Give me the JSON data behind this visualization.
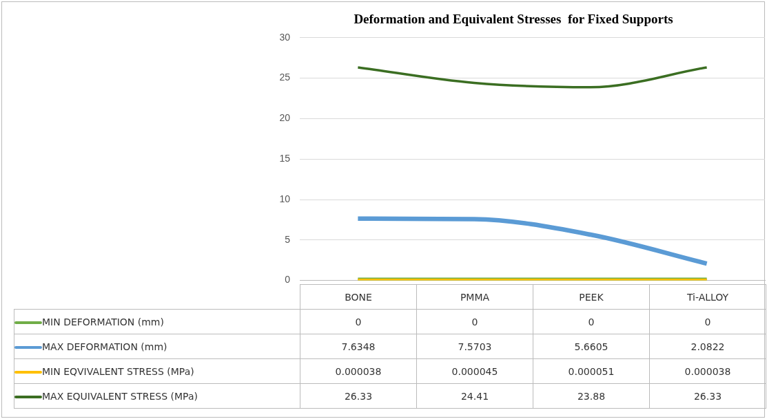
{
  "chart_data": {
    "type": "line",
    "title": "Deformation and Equivalent Stresses  for Fixed Supports",
    "categories": [
      "BONE",
      "PMMA",
      "PEEK",
      "Ti-ALLOY"
    ],
    "series": [
      {
        "name": "MIN DEFORMATION (mm)",
        "color": "#70ad47",
        "values": [
          0,
          0,
          0,
          0
        ],
        "value_labels": [
          "0",
          "0",
          "0",
          "0"
        ]
      },
      {
        "name": "MAX DEFORMATION (mm)",
        "color": "#5b9bd5",
        "values": [
          7.6348,
          7.5703,
          5.6605,
          2.0822
        ],
        "value_labels": [
          "7.6348",
          "7.5703",
          "5.6605",
          "2.0822"
        ]
      },
      {
        "name": "MIN EQVIVALENT STRESS (MPa)",
        "color": "#ffc000",
        "values": [
          3.8e-05,
          4.5e-05,
          5.1e-05,
          3.8e-05
        ],
        "value_labels": [
          "0.000038",
          "0.000045",
          "0.000051",
          "0.000038"
        ]
      },
      {
        "name": "MAX EQUIVALENT STRESS (MPa)",
        "color": "#3b6e22",
        "values": [
          26.33,
          24.41,
          23.88,
          26.33
        ],
        "value_labels": [
          "26.33",
          "24.41",
          "23.88",
          "26.33"
        ]
      }
    ],
    "ylim": [
      0,
      30
    ],
    "yticks": [
      0,
      5,
      10,
      15,
      20,
      25,
      30
    ],
    "grid": "y",
    "legend": "bottom"
  }
}
